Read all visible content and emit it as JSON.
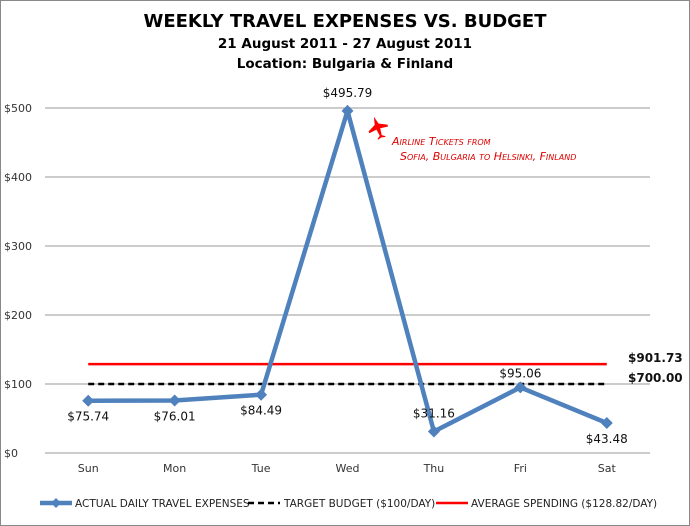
{
  "chart_data": {
    "type": "line",
    "title": "WEEKLY TRAVEL EXPENSES VS. BUDGET",
    "subtitle": "21 August 2011 - 27 August 2011",
    "subtitle2": "Location: Bulgaria & Finland",
    "categories": [
      "Sun",
      "Mon",
      "Tue",
      "Wed",
      "Thu",
      "Fri",
      "Sat"
    ],
    "ylim": [
      0,
      500
    ],
    "yticks": [
      0,
      100,
      200,
      300,
      400,
      500
    ],
    "ytick_labels": [
      "$0",
      "$100",
      "$200",
      "$300",
      "$400",
      "$500"
    ],
    "grid": true,
    "legend_position": "bottom",
    "series": [
      {
        "name": "ACTUAL DAILY TRAVEL EXPENSES",
        "color": "#4f81bd",
        "style": "solid-diamond",
        "values": [
          75.74,
          76.01,
          84.49,
          495.79,
          31.16,
          95.06,
          43.48
        ],
        "labels": [
          "$75.74",
          "$76.01",
          "$84.49",
          "$495.79",
          "$31.16",
          "$95.06",
          "$43.48"
        ]
      },
      {
        "name": "TARGET BUDGET ($100/DAY)",
        "color": "#000000",
        "style": "dashed",
        "value": 100,
        "end_label": "$700.00"
      },
      {
        "name": "AVERAGE SPENDING ($128.82/DAY)",
        "color": "#ff0000",
        "style": "solid",
        "value": 128.82,
        "end_label": "$901.73"
      }
    ],
    "annotation": {
      "line1": "Airline Tickets from",
      "line2": "Sofia, Bulgaria to Helsinki, Finland",
      "icon": "airplane-icon",
      "color": "#ff0000"
    }
  }
}
